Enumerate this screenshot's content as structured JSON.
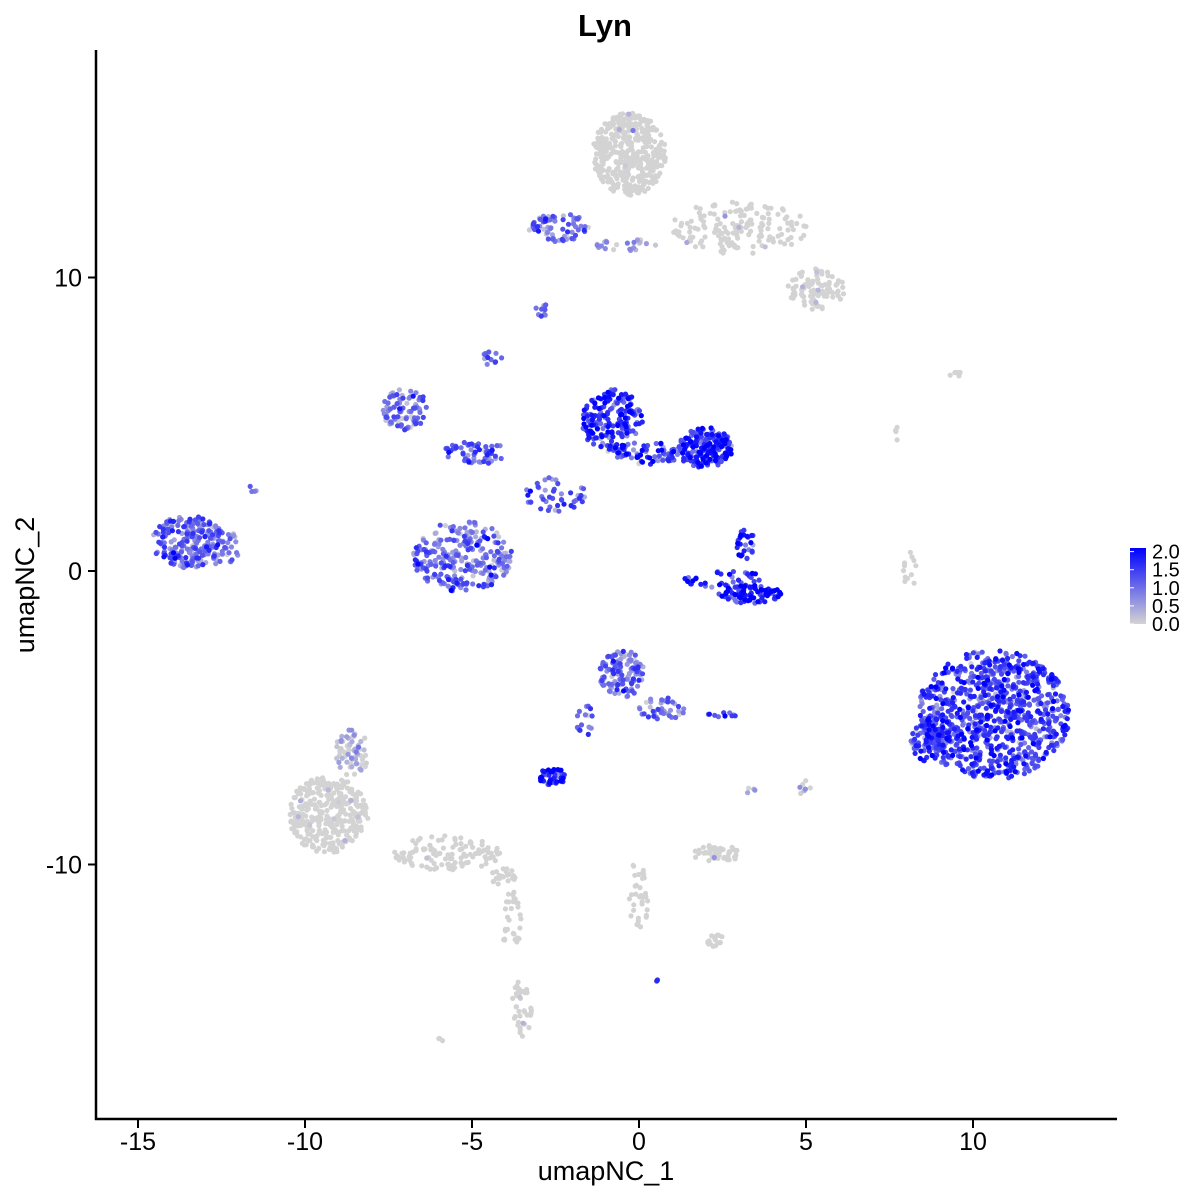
{
  "chart_data": {
    "type": "scatter",
    "title": "Lyn",
    "xlabel": "umapNC_1",
    "ylabel": "umapNC_2",
    "xlim": [
      -16.5,
      14.5
    ],
    "ylim": [
      -18.1,
      17.8
    ],
    "x_ticks": [
      -15,
      -10,
      -5,
      0,
      5,
      10
    ],
    "x_tick_labels": [
      "-15",
      "-10",
      "-5",
      "0",
      "5",
      "10"
    ],
    "y_ticks": [
      -10,
      0,
      10
    ],
    "y_tick_labels": [
      "-10",
      "0",
      "10"
    ],
    "grid": false,
    "legend": {
      "position": "right",
      "type": "colorbar",
      "min": 0.0,
      "max": 2.1,
      "ticks": [
        2.0,
        1.5,
        1.0,
        0.5,
        0.0
      ],
      "tick_labels": [
        "2.0",
        "1.5",
        "1.0",
        "0.5",
        "0.0"
      ],
      "low_color": "#d3d3d3",
      "high_color": "#0000ff"
    },
    "clusters": [
      {
        "cx": -0.3,
        "cy": 14.2,
        "rx": 1.1,
        "ry": 1.4,
        "n": 420,
        "mean": 0.02
      },
      {
        "cx": 3.0,
        "cy": 11.7,
        "rx": 2.1,
        "ry": 0.9,
        "n": 160,
        "mean": 0.08
      },
      {
        "cx": 5.3,
        "cy": 9.6,
        "rx": 0.9,
        "ry": 0.7,
        "n": 90,
        "mean": 0.05
      },
      {
        "cx": -2.4,
        "cy": 11.7,
        "rx": 0.9,
        "ry": 0.5,
        "n": 70,
        "mean": 0.9
      },
      {
        "cx": -0.3,
        "cy": 11.1,
        "rx": 1.0,
        "ry": 0.2,
        "n": 22,
        "mean": 0.6
      },
      {
        "cx": -2.9,
        "cy": 8.9,
        "rx": 0.2,
        "ry": 0.3,
        "n": 10,
        "mean": 0.9
      },
      {
        "cx": -4.4,
        "cy": 7.3,
        "rx": 0.3,
        "ry": 0.3,
        "n": 12,
        "mean": 1.0
      },
      {
        "cx": -7.0,
        "cy": 5.5,
        "rx": 0.7,
        "ry": 0.7,
        "n": 85,
        "mean": 0.9
      },
      {
        "cx": -4.9,
        "cy": 4.0,
        "rx": 1.0,
        "ry": 0.4,
        "n": 60,
        "mean": 1.2
      },
      {
        "cx": -0.8,
        "cy": 5.1,
        "rx": 0.9,
        "ry": 1.1,
        "n": 200,
        "mean": 1.55
      },
      {
        "cx": 2.0,
        "cy": 4.2,
        "rx": 0.8,
        "ry": 0.7,
        "n": 170,
        "mean": 1.6
      },
      {
        "cx": 0.5,
        "cy": 4.0,
        "rx": 1.2,
        "ry": 0.4,
        "n": 70,
        "mean": 1.4
      },
      {
        "cx": -2.5,
        "cy": 2.6,
        "rx": 0.9,
        "ry": 0.6,
        "n": 45,
        "mean": 1.1
      },
      {
        "cx": -13.5,
        "cy": 1.0,
        "rx": 1.1,
        "ry": 0.9,
        "n": 220,
        "mean": 1.0
      },
      {
        "cx": -12.4,
        "cy": 0.8,
        "rx": 0.5,
        "ry": 0.7,
        "n": 28,
        "mean": 0.7
      },
      {
        "cx": -5.3,
        "cy": 0.5,
        "rx": 1.5,
        "ry": 1.2,
        "n": 260,
        "mean": 0.95
      },
      {
        "cx": 3.3,
        "cy": -0.8,
        "rx": 1.0,
        "ry": 0.3,
        "n": 90,
        "mean": 1.8
      },
      {
        "cx": 3.2,
        "cy": 0.9,
        "rx": 0.3,
        "ry": 0.5,
        "n": 25,
        "mean": 1.8
      },
      {
        "cx": 2.6,
        "cy": -0.3,
        "rx": 1.3,
        "ry": 0.3,
        "n": 40,
        "mean": 1.6
      },
      {
        "cx": 10.6,
        "cy": -4.9,
        "rx": 2.3,
        "ry": 2.2,
        "n": 900,
        "mean": 1.35
      },
      {
        "cx": 8.7,
        "cy": -5.7,
        "rx": 0.6,
        "ry": 0.8,
        "n": 100,
        "mean": 1.3
      },
      {
        "cx": -0.5,
        "cy": -3.5,
        "rx": 0.7,
        "ry": 0.8,
        "n": 120,
        "mean": 0.9
      },
      {
        "cx": 0.7,
        "cy": -4.7,
        "rx": 0.7,
        "ry": 0.4,
        "n": 40,
        "mean": 0.85
      },
      {
        "cx": -1.6,
        "cy": -5.0,
        "rx": 0.3,
        "ry": 0.6,
        "n": 15,
        "mean": 1.1
      },
      {
        "cx": -2.6,
        "cy": -7.0,
        "rx": 0.4,
        "ry": 0.3,
        "n": 45,
        "mean": 1.6
      },
      {
        "cx": 2.5,
        "cy": -4.9,
        "rx": 0.5,
        "ry": 0.1,
        "n": 10,
        "mean": 1.2
      },
      {
        "cx": -9.3,
        "cy": -8.3,
        "rx": 1.2,
        "ry": 1.3,
        "n": 320,
        "mean": 0.08
      },
      {
        "cx": -8.6,
        "cy": -6.2,
        "rx": 0.5,
        "ry": 0.8,
        "n": 70,
        "mean": 0.15
      },
      {
        "cx": -5.8,
        "cy": -9.6,
        "rx": 1.7,
        "ry": 0.6,
        "n": 110,
        "mean": 0.03
      },
      {
        "cx": -4.1,
        "cy": -10.4,
        "rx": 0.4,
        "ry": 0.3,
        "n": 25,
        "mean": 0.02
      },
      {
        "cx": -3.8,
        "cy": -12.0,
        "rx": 0.3,
        "ry": 1.1,
        "n": 30,
        "mean": 0.02
      },
      {
        "cx": -3.5,
        "cy": -14.9,
        "rx": 0.3,
        "ry": 1.0,
        "n": 40,
        "mean": 0.02
      },
      {
        "cx": 2.3,
        "cy": -9.6,
        "rx": 0.8,
        "ry": 0.3,
        "n": 55,
        "mean": 0.03
      },
      {
        "cx": 0.0,
        "cy": -11.0,
        "rx": 0.3,
        "ry": 1.3,
        "n": 35,
        "mean": 0.02
      },
      {
        "cx": 2.3,
        "cy": -12.6,
        "rx": 0.3,
        "ry": 0.2,
        "n": 15,
        "mean": 0.02
      },
      {
        "cx": 8.1,
        "cy": 0.0,
        "rx": 0.2,
        "ry": 0.7,
        "n": 12,
        "mean": 0.05
      },
      {
        "cx": 9.5,
        "cy": 6.7,
        "rx": 0.2,
        "ry": 0.1,
        "n": 5,
        "mean": 0.0
      },
      {
        "cx": 7.7,
        "cy": 4.7,
        "rx": 0.2,
        "ry": 0.3,
        "n": 4,
        "mean": 0.0
      },
      {
        "cx": 5.0,
        "cy": -7.4,
        "rx": 0.2,
        "ry": 0.3,
        "n": 7,
        "mean": 0.3
      },
      {
        "cx": 3.3,
        "cy": -7.4,
        "rx": 0.2,
        "ry": 0.2,
        "n": 4,
        "mean": 0.3
      },
      {
        "cx": 0.6,
        "cy": -14.0,
        "rx": 0.15,
        "ry": 0.1,
        "n": 3,
        "mean": 1.6
      },
      {
        "cx": -6.0,
        "cy": -16.0,
        "rx": 0.15,
        "ry": 0.1,
        "n": 3,
        "mean": 0.02
      },
      {
        "cx": -11.6,
        "cy": 2.8,
        "rx": 0.2,
        "ry": 0.1,
        "n": 4,
        "mean": 1.0
      }
    ]
  }
}
